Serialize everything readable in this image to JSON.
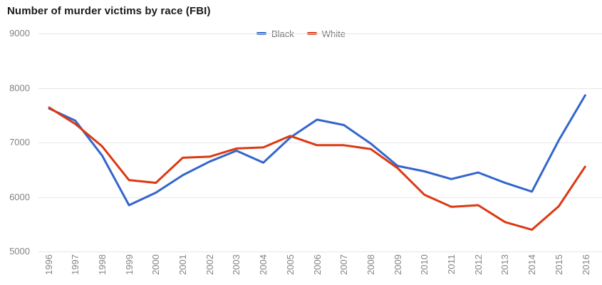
{
  "title": "Number of murder victims by race (FBI)",
  "chart_data": {
    "type": "line",
    "title": "Number of murder victims by race (FBI)",
    "xlabel": "",
    "ylabel": "",
    "x": [
      "1996",
      "1997",
      "1998",
      "1999",
      "2000",
      "2001",
      "2002",
      "2003",
      "2004",
      "2005",
      "2006",
      "2007",
      "2008",
      "2009",
      "2010",
      "2011",
      "2012",
      "2013",
      "2014",
      "2015",
      "2016"
    ],
    "series": [
      {
        "name": "Black",
        "color": "#3366cc",
        "values": [
          7630,
          7400,
          6760,
          5850,
          6080,
          6400,
          6650,
          6850,
          6630,
          7090,
          7420,
          7320,
          6980,
          6570,
          6470,
          6330,
          6450,
          6260,
          6100,
          7040,
          7880
        ]
      },
      {
        "name": "White",
        "color": "#dc3912",
        "values": [
          7650,
          7340,
          6930,
          6310,
          6260,
          6720,
          6740,
          6890,
          6910,
          7120,
          6950,
          6950,
          6880,
          6530,
          6040,
          5820,
          5850,
          5540,
          5400,
          5830,
          6570
        ]
      }
    ],
    "yticks": [
      9000,
      8000,
      7000,
      6000,
      5000
    ],
    "ytick_labels": [
      "9000",
      "8000",
      "7000",
      "6000",
      "5000"
    ],
    "ylim": [
      5000,
      9000
    ],
    "grid": true,
    "legend_position": "top-center",
    "line_width": 3
  },
  "colors": {
    "grid": "#e6e6e6",
    "axis_text": "#848484",
    "legend_text": "#757575",
    "title_text": "#1a1a1a",
    "background": "#ffffff"
  }
}
